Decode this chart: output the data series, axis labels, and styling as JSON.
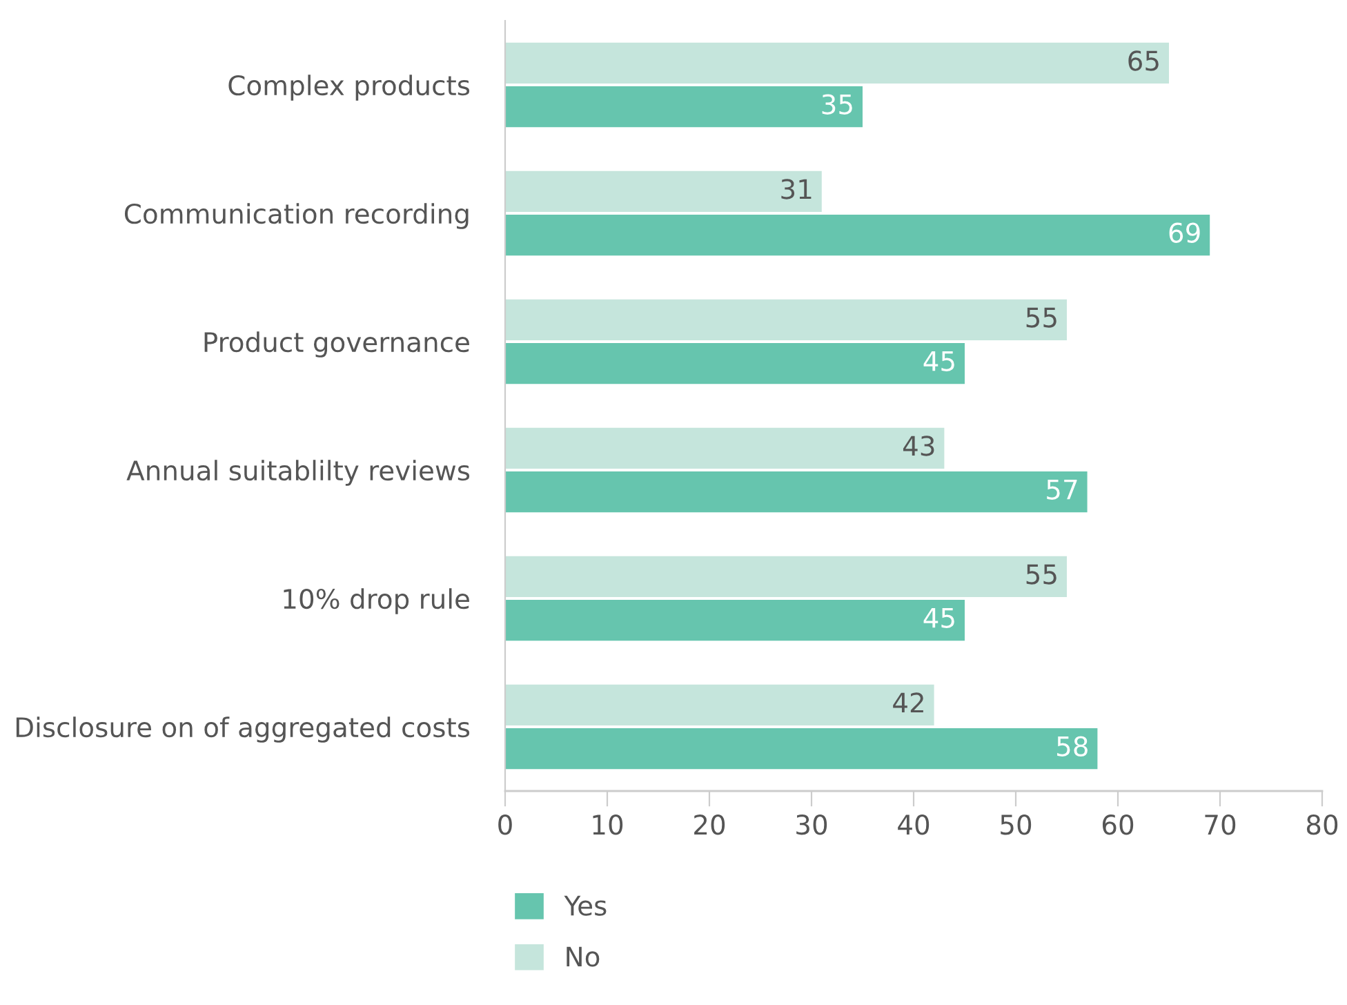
{
  "chart_data": {
    "type": "bar",
    "orientation": "horizontal",
    "categories": [
      "Complex products",
      "Communication recording",
      "Product governance",
      "Annual suitablilty reviews",
      "10% drop rule",
      "Disclosure on of aggregated costs"
    ],
    "series": [
      {
        "name": "Yes",
        "color": "#66c5ae",
        "values": [
          35,
          69,
          45,
          57,
          45,
          58
        ]
      },
      {
        "name": "No",
        "color": "#c5e5dc",
        "values": [
          65,
          31,
          55,
          43,
          55,
          42
        ]
      }
    ],
    "xlim": [
      0,
      80
    ],
    "xticks": [
      0,
      10,
      20,
      30,
      40,
      50,
      60,
      70,
      80
    ],
    "data_labels": true,
    "legend": "bottom",
    "grid": false
  }
}
